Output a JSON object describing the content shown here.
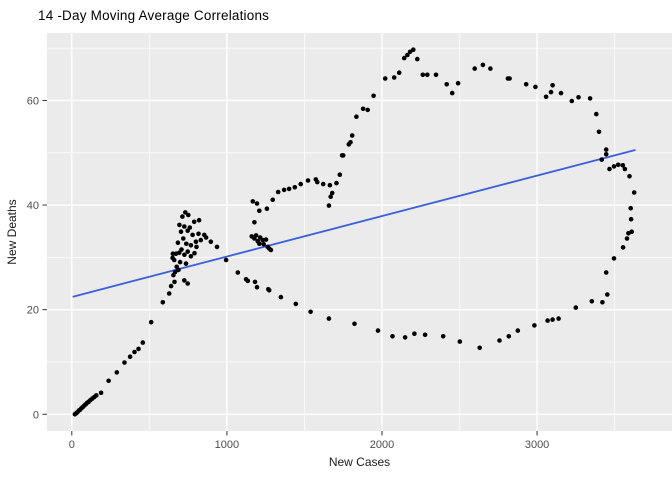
{
  "title": "14 -Day Moving Average Correlations",
  "chart_data": {
    "type": "scatter",
    "title": "14 -Day Moving Average Correlations",
    "xlabel": "New Cases",
    "ylabel": "New Deaths",
    "x_ticks": [
      0,
      1000,
      2000,
      3000
    ],
    "y_ticks": [
      0,
      20,
      40,
      60
    ],
    "x_minor_ticks": [
      500,
      1500,
      2500,
      3500
    ],
    "y_minor_ticks": [
      10,
      30,
      50,
      70
    ],
    "xlim": [
      -160,
      3870
    ],
    "ylim": [
      -3.2,
      72.9
    ],
    "grid": "major+minor",
    "legend_position": "none",
    "trend_line": {
      "x1": 10,
      "y1": 22.5,
      "x2": 3630,
      "y2": 50.5
    },
    "points": [
      [
        20,
        0.0
      ],
      [
        28,
        0.2
      ],
      [
        36,
        0.4
      ],
      [
        45,
        0.7
      ],
      [
        54,
        0.9
      ],
      [
        63,
        1.2
      ],
      [
        72,
        1.4
      ],
      [
        81,
        1.7
      ],
      [
        90,
        1.9
      ],
      [
        99,
        2.2
      ],
      [
        109,
        2.4
      ],
      [
        120,
        2.7
      ],
      [
        132,
        3.0
      ],
      [
        145,
        3.3
      ],
      [
        158,
        3.6
      ],
      [
        189,
        4.1
      ],
      [
        237,
        6.4
      ],
      [
        290,
        8.0
      ],
      [
        340,
        9.9
      ],
      [
        376,
        11.0
      ],
      [
        404,
        11.9
      ],
      [
        430,
        12.5
      ],
      [
        458,
        13.7
      ],
      [
        512,
        17.6
      ],
      [
        587,
        21.4
      ],
      [
        628,
        23.1
      ],
      [
        640,
        24.5
      ],
      [
        655,
        26.6
      ],
      [
        660,
        29.5
      ],
      [
        666,
        27.2
      ],
      [
        650,
        29.9
      ],
      [
        652,
        30.7
      ],
      [
        672,
        30.7
      ],
      [
        693,
        30.9
      ],
      [
        698,
        29.1
      ],
      [
        704,
        34.9
      ],
      [
        719,
        33.6
      ],
      [
        725,
        35.9
      ],
      [
        725,
        25.6
      ],
      [
        736,
        28.8
      ],
      [
        747,
        25.0
      ],
      [
        747,
        31.1
      ],
      [
        747,
        35.1
      ],
      [
        768,
        30.2
      ],
      [
        768,
        32.3
      ],
      [
        779,
        34.3
      ],
      [
        789,
        36.8
      ],
      [
        800,
        33.0
      ],
      [
        804,
        32.0
      ],
      [
        817,
        34.5
      ],
      [
        821,
        37.1
      ],
      [
        832,
        33.3
      ],
      [
        854,
        34.3
      ],
      [
        866,
        33.8
      ],
      [
        896,
        33.0
      ],
      [
        732,
        38.6
      ],
      [
        713,
        37.8
      ],
      [
        751,
        38.1
      ],
      [
        694,
        36.2
      ],
      [
        684,
        32.8
      ],
      [
        707,
        31.5
      ],
      [
        726,
        30.5
      ],
      [
        738,
        32.6
      ],
      [
        761,
        35.7
      ],
      [
        791,
        30.8
      ],
      [
        676,
        28.2
      ],
      [
        662,
        25.3
      ],
      [
        688,
        27.6
      ],
      [
        936,
        32.0
      ],
      [
        995,
        29.5
      ],
      [
        1070,
        27.1
      ],
      [
        1124,
        25.8
      ],
      [
        1135,
        25.5
      ],
      [
        1181,
        25.3
      ],
      [
        1194,
        24.3
      ],
      [
        1267,
        23.9
      ],
      [
        1273,
        23.7
      ],
      [
        1348,
        22.4
      ],
      [
        1444,
        21.1
      ],
      [
        1540,
        19.6
      ],
      [
        1658,
        18.3
      ],
      [
        1823,
        17.3
      ],
      [
        1974,
        16.0
      ],
      [
        2068,
        14.9
      ],
      [
        2149,
        14.7
      ],
      [
        2209,
        15.4
      ],
      [
        2278,
        15.2
      ],
      [
        2395,
        14.9
      ],
      [
        2502,
        13.9
      ],
      [
        2630,
        12.7
      ],
      [
        2758,
        14.1
      ],
      [
        2818,
        14.9
      ],
      [
        2876,
        16.0
      ],
      [
        2983,
        17.0
      ],
      [
        3068,
        17.9
      ],
      [
        3100,
        18.1
      ],
      [
        3139,
        18.3
      ],
      [
        3250,
        20.4
      ],
      [
        3353,
        21.6
      ],
      [
        3421,
        21.4
      ],
      [
        3453,
        22.9
      ],
      [
        3446,
        27.1
      ],
      [
        3496,
        29.8
      ],
      [
        3555,
        31.9
      ],
      [
        3580,
        33.6
      ],
      [
        3589,
        34.6
      ],
      [
        3610,
        34.9
      ],
      [
        3606,
        37.3
      ],
      [
        3604,
        39.4
      ],
      [
        3626,
        42.4
      ],
      [
        3596,
        45.5
      ],
      [
        3566,
        46.9
      ],
      [
        3553,
        47.6
      ],
      [
        3523,
        47.7
      ],
      [
        3496,
        47.4
      ],
      [
        3467,
        46.9
      ],
      [
        3446,
        50.6
      ],
      [
        3446,
        49.7
      ],
      [
        3417,
        48.7
      ],
      [
        3382,
        57.4
      ],
      [
        3399,
        54.0
      ],
      [
        3342,
        60.4
      ],
      [
        3267,
        60.6
      ],
      [
        3224,
        59.9
      ],
      [
        3154,
        61.4
      ],
      [
        3100,
        62.9
      ],
      [
        3090,
        61.6
      ],
      [
        3058,
        60.7
      ],
      [
        2989,
        62.6
      ],
      [
        2930,
        63.1
      ],
      [
        2823,
        64.2
      ],
      [
        2812,
        64.2
      ],
      [
        2699,
        66.1
      ],
      [
        2651,
        66.8
      ],
      [
        2598,
        66.1
      ],
      [
        2491,
        63.3
      ],
      [
        2453,
        61.4
      ],
      [
        2417,
        63.1
      ],
      [
        2348,
        64.9
      ],
      [
        2292,
        64.9
      ],
      [
        2263,
        64.9
      ],
      [
        2228,
        67.9
      ],
      [
        2202,
        69.7
      ],
      [
        2181,
        69.3
      ],
      [
        2164,
        68.7
      ],
      [
        2143,
        68.1
      ],
      [
        2111,
        65.3
      ],
      [
        2079,
        64.4
      ],
      [
        2021,
        64.2
      ],
      [
        1946,
        60.9
      ],
      [
        1908,
        58.2
      ],
      [
        1878,
        58.4
      ],
      [
        1835,
        56.9
      ],
      [
        1808,
        53.3
      ],
      [
        1797,
        52.0
      ],
      [
        1786,
        51.6
      ],
      [
        1750,
        49.5
      ],
      [
        1743,
        49.5
      ],
      [
        1728,
        45.8
      ],
      [
        1707,
        44.2
      ],
      [
        1679,
        42.3
      ],
      [
        1669,
        41.6
      ],
      [
        1664,
        43.8
      ],
      [
        1658,
        39.9
      ],
      [
        1621,
        44.0
      ],
      [
        1583,
        44.4
      ],
      [
        1573,
        44.9
      ],
      [
        1523,
        44.7
      ],
      [
        1476,
        44.0
      ],
      [
        1438,
        43.4
      ],
      [
        1401,
        43.1
      ],
      [
        1369,
        42.9
      ],
      [
        1331,
        42.5
      ],
      [
        1295,
        41.0
      ],
      [
        1258,
        39.3
      ],
      [
        1209,
        38.9
      ],
      [
        1194,
        40.3
      ],
      [
        1177,
        36.7
      ],
      [
        1167,
        40.7
      ],
      [
        1160,
        34.0
      ],
      [
        1177,
        33.6
      ],
      [
        1199,
        33.1
      ],
      [
        1209,
        32.6
      ],
      [
        1231,
        33.3
      ],
      [
        1252,
        33.4
      ],
      [
        1215,
        33.8
      ],
      [
        1188,
        34.2
      ],
      [
        1237,
        32.5
      ],
      [
        1263,
        32.0
      ],
      [
        1273,
        31.7
      ],
      [
        1284,
        31.4
      ]
    ]
  },
  "style": {
    "panel_bg": "#EBEBEB",
    "grid_color": "#FFFFFF",
    "point_color": "#000000",
    "trend_color": "#3A5FDF",
    "tick_label_color": "#4D4D4D",
    "axis_title_color": "#1A1A1A",
    "tick_mark_color": "#333333",
    "figure_bg": "#FFFFFF"
  }
}
